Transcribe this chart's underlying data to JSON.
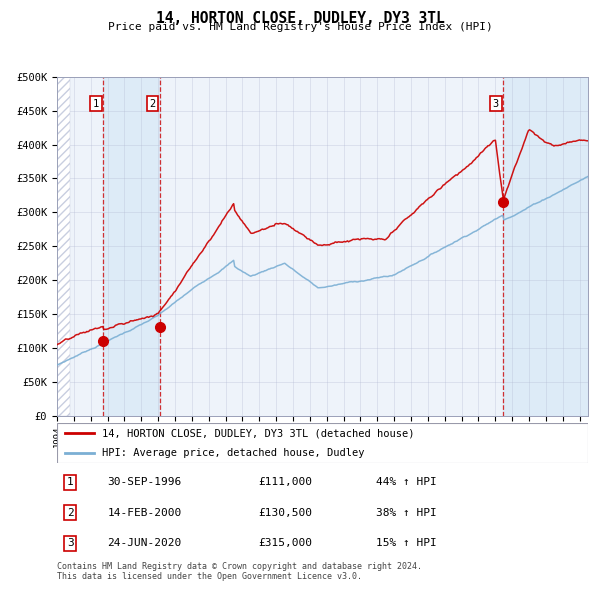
{
  "title": "14, HORTON CLOSE, DUDLEY, DY3 3TL",
  "subtitle": "Price paid vs. HM Land Registry's House Price Index (HPI)",
  "ylim": [
    0,
    500000
  ],
  "yticks": [
    0,
    50000,
    100000,
    150000,
    200000,
    250000,
    300000,
    350000,
    400000,
    450000,
    500000
  ],
  "ytick_labels": [
    "£0",
    "£50K",
    "£100K",
    "£150K",
    "£200K",
    "£250K",
    "£300K",
    "£350K",
    "£400K",
    "£450K",
    "£500K"
  ],
  "xmin": 1994,
  "xmax": 2025.5,
  "sales": [
    {
      "date_num": 1996.75,
      "price": 111000,
      "label": "1"
    },
    {
      "date_num": 2000.12,
      "price": 130500,
      "label": "2"
    },
    {
      "date_num": 2020.48,
      "price": 315000,
      "label": "3"
    }
  ],
  "sale_details": [
    {
      "label": "1",
      "date": "30-SEP-1996",
      "price": "£111,000",
      "hpi_pct": "44% ↑ HPI"
    },
    {
      "label": "2",
      "date": "14-FEB-2000",
      "price": "£130,500",
      "hpi_pct": "38% ↑ HPI"
    },
    {
      "label": "3",
      "date": "24-JUN-2020",
      "price": "£315,000",
      "hpi_pct": "15% ↑ HPI"
    }
  ],
  "red_line_color": "#cc0000",
  "blue_line_color": "#7bafd4",
  "shade_color": "#daeaf7",
  "grid_color": "#b0b8d0",
  "footnote": "Contains HM Land Registry data © Crown copyright and database right 2024.\nThis data is licensed under the Open Government Licence v3.0.",
  "legend_entries": [
    "14, HORTON CLOSE, DUDLEY, DY3 3TL (detached house)",
    "HPI: Average price, detached house, Dudley"
  ],
  "background_color": "#ffffff",
  "plot_bg_color": "#eef3fa"
}
